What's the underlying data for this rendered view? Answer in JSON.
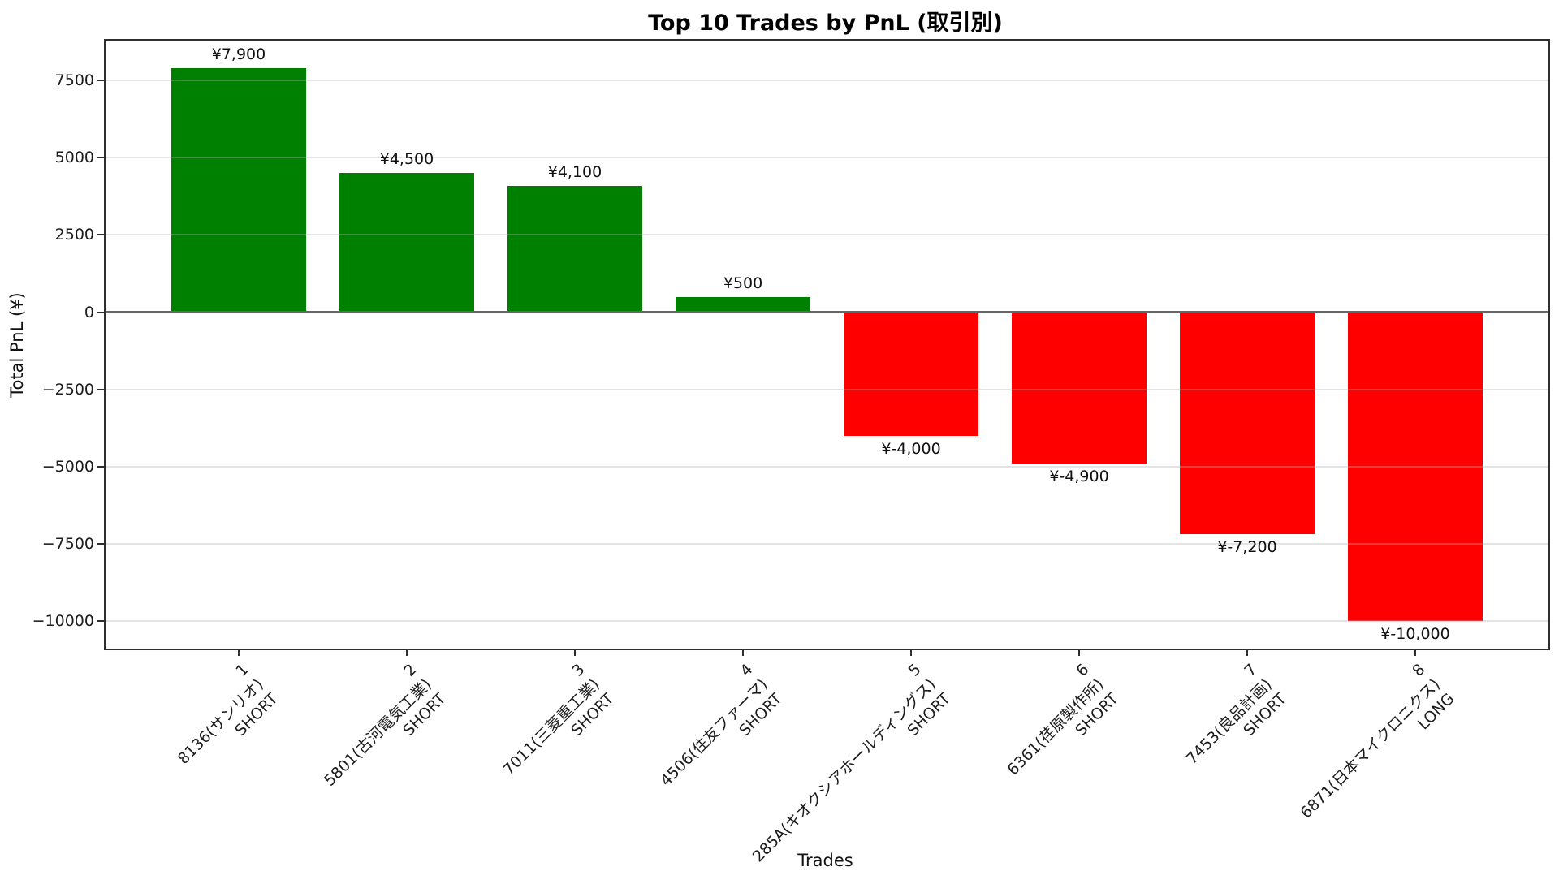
{
  "chart_data": {
    "type": "bar",
    "title": "Top 10 Trades by PnL (取引別)",
    "xlabel": "Trades",
    "ylabel": "Total PnL (¥)",
    "ylim": [
      -10895,
      8795
    ],
    "yticks": [
      7500,
      5000,
      2500,
      0,
      -2500,
      -5000,
      -7500,
      -10000
    ],
    "grid": "horizontal",
    "zero_line": true,
    "legend": "none",
    "background": "#ffffff",
    "bar_colors": {
      "positive": "#008000",
      "negative": "#ff0000"
    },
    "categories": [
      {
        "rank": "1",
        "label": "8136(サンリオ)",
        "side": "SHORT"
      },
      {
        "rank": "2",
        "label": "5801(古河電気工業)",
        "side": "SHORT"
      },
      {
        "rank": "3",
        "label": "7011(三菱重工業)",
        "side": "SHORT"
      },
      {
        "rank": "4",
        "label": "4506(住友ファーマ)",
        "side": "SHORT"
      },
      {
        "rank": "5",
        "label": "285A(キオクシアホールディングス)",
        "side": "SHORT"
      },
      {
        "rank": "6",
        "label": "6361(荏原製作所)",
        "side": "SHORT"
      },
      {
        "rank": "7",
        "label": "7453(良品計画)",
        "side": "SHORT"
      },
      {
        "rank": "8",
        "label": "6871(日本マイクロニクス)",
        "side": "LONG"
      }
    ],
    "values": [
      7900,
      4500,
      4100,
      500,
      -4000,
      -4900,
      -7200,
      -10000
    ],
    "value_labels": [
      "¥7,900",
      "¥4,500",
      "¥4,100",
      "¥500",
      "¥-4,000",
      "¥-4,900",
      "¥-7,200",
      "¥-10,000"
    ]
  }
}
